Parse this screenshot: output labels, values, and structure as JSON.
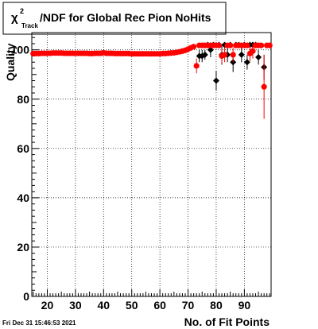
{
  "title": {
    "symbol": "χ",
    "superscript": "2",
    "subscript": "Track",
    "rest": "/NDF for Global Rec Pion NoHits"
  },
  "timestamp": "Fri Dec 31 15:46:53 2021",
  "chart_data": {
    "type": "scatter",
    "xlabel": "No. of Fit Points",
    "ylabel": "Quality",
    "xlim": [
      14.5,
      99.5
    ],
    "ylim": [
      0,
      107
    ],
    "x_ticks": [
      20,
      30,
      40,
      50,
      60,
      70,
      80,
      90
    ],
    "y_ticks": [
      0,
      20,
      40,
      60,
      80,
      100
    ],
    "grid": true,
    "series": [
      {
        "color": "#000000",
        "marker": "diamond",
        "points": [
          {
            "x": 74,
            "y": 97.5,
            "err": 2.5
          },
          {
            "x": 75,
            "y": 97.5,
            "err": 2.5
          },
          {
            "x": 76,
            "y": 98,
            "err": 2
          },
          {
            "x": 77,
            "y": 102,
            "err": 0
          },
          {
            "x": 78,
            "y": 100,
            "err": 3
          },
          {
            "x": 79,
            "y": 102,
            "err": 0
          },
          {
            "x": 80,
            "y": 87.5,
            "err": 4
          },
          {
            "x": 81,
            "y": 102,
            "err": 0
          },
          {
            "x": 82,
            "y": 98,
            "err": 4
          },
          {
            "x": 83,
            "y": 102,
            "err": 0
          },
          {
            "x": 84,
            "y": 98,
            "err": 3
          },
          {
            "x": 85,
            "y": 102,
            "err": 0
          },
          {
            "x": 86,
            "y": 95,
            "err": 4
          },
          {
            "x": 87,
            "y": 102,
            "err": 0
          },
          {
            "x": 88,
            "y": 102,
            "err": 0
          },
          {
            "x": 89,
            "y": 98,
            "err": 3
          },
          {
            "x": 90,
            "y": 102,
            "err": 0
          },
          {
            "x": 91,
            "y": 95,
            "err": 3
          },
          {
            "x": 92,
            "y": 102,
            "err": 0
          },
          {
            "x": 93,
            "y": 102,
            "err": 0
          },
          {
            "x": 94,
            "y": 102,
            "err": 0
          },
          {
            "x": 95,
            "y": 97,
            "err": 3
          },
          {
            "x": 97,
            "y": 93,
            "err": 5
          }
        ]
      },
      {
        "color": "#ff0000",
        "marker": "circle",
        "points": [
          {
            "x": 15,
            "y": 98.5
          },
          {
            "x": 16,
            "y": 98.5
          },
          {
            "x": 17,
            "y": 98.5
          },
          {
            "x": 18,
            "y": 98.6
          },
          {
            "x": 19,
            "y": 98.6
          },
          {
            "x": 20,
            "y": 98.6
          },
          {
            "x": 21,
            "y": 98.6
          },
          {
            "x": 22,
            "y": 98.7
          },
          {
            "x": 23,
            "y": 98.7
          },
          {
            "x": 24,
            "y": 98.7
          },
          {
            "x": 25,
            "y": 98.7
          },
          {
            "x": 26,
            "y": 98.6
          },
          {
            "x": 27,
            "y": 98.6
          },
          {
            "x": 28,
            "y": 98.6
          },
          {
            "x": 29,
            "y": 98.6
          },
          {
            "x": 30,
            "y": 98.6
          },
          {
            "x": 31,
            "y": 98.6
          },
          {
            "x": 32,
            "y": 98.6
          },
          {
            "x": 33,
            "y": 98.6
          },
          {
            "x": 34,
            "y": 98.6
          },
          {
            "x": 35,
            "y": 98.5
          },
          {
            "x": 36,
            "y": 98.5
          },
          {
            "x": 37,
            "y": 98.6
          },
          {
            "x": 38,
            "y": 98.6
          },
          {
            "x": 39,
            "y": 98.6
          },
          {
            "x": 40,
            "y": 98.8
          },
          {
            "x": 41,
            "y": 98.6
          },
          {
            "x": 42,
            "y": 98.6
          },
          {
            "x": 43,
            "y": 98.6
          },
          {
            "x": 44,
            "y": 98.5
          },
          {
            "x": 45,
            "y": 98.5
          },
          {
            "x": 46,
            "y": 98.5
          },
          {
            "x": 47,
            "y": 98.5
          },
          {
            "x": 48,
            "y": 98.5
          },
          {
            "x": 49,
            "y": 98.5
          },
          {
            "x": 50,
            "y": 98.4
          },
          {
            "x": 51,
            "y": 98.4
          },
          {
            "x": 52,
            "y": 98.4
          },
          {
            "x": 53,
            "y": 98.4
          },
          {
            "x": 54,
            "y": 98.4
          },
          {
            "x": 55,
            "y": 98.4
          },
          {
            "x": 56,
            "y": 98.4
          },
          {
            "x": 57,
            "y": 98.4
          },
          {
            "x": 58,
            "y": 98.4
          },
          {
            "x": 59,
            "y": 98.4
          },
          {
            "x": 60,
            "y": 98.4
          },
          {
            "x": 61,
            "y": 98.5
          },
          {
            "x": 62,
            "y": 98.5
          },
          {
            "x": 63,
            "y": 98.6
          },
          {
            "x": 64,
            "y": 98.7
          },
          {
            "x": 65,
            "y": 98.8
          },
          {
            "x": 66,
            "y": 99
          },
          {
            "x": 67,
            "y": 99.2
          },
          {
            "x": 68,
            "y": 99.5
          },
          {
            "x": 69,
            "y": 99.8
          },
          {
            "x": 70,
            "y": 100.3
          },
          {
            "x": 71,
            "y": 100.8
          },
          {
            "x": 72,
            "y": 101.3
          },
          {
            "x": 73,
            "y": 93.5,
            "err": 3
          },
          {
            "x": 74,
            "y": 101.8
          },
          {
            "x": 75,
            "y": 101.8
          },
          {
            "x": 76,
            "y": 101.8
          },
          {
            "x": 77,
            "y": 101.8
          },
          {
            "x": 78,
            "y": 101.8
          },
          {
            "x": 79,
            "y": 101.8
          },
          {
            "x": 80,
            "y": 101.8
          },
          {
            "x": 81,
            "y": 101.8
          },
          {
            "x": 82,
            "y": 97.5,
            "err": 3
          },
          {
            "x": 83,
            "y": 98,
            "err": 3
          },
          {
            "x": 84,
            "y": 101.8
          },
          {
            "x": 85,
            "y": 101.8
          },
          {
            "x": 86,
            "y": 98,
            "err": 3
          },
          {
            "x": 87,
            "y": 101.8
          },
          {
            "x": 88,
            "y": 101.8
          },
          {
            "x": 89,
            "y": 101.8
          },
          {
            "x": 90,
            "y": 101.8
          },
          {
            "x": 91,
            "y": 101.8
          },
          {
            "x": 92,
            "y": 98.5,
            "err": 3
          },
          {
            "x": 93,
            "y": 99.5,
            "err": 3
          },
          {
            "x": 94,
            "y": 101.8
          },
          {
            "x": 95,
            "y": 101.8
          },
          {
            "x": 96,
            "y": 101.8
          },
          {
            "x": 97,
            "y": 85,
            "err": 13
          },
          {
            "x": 98,
            "y": 101.8
          },
          {
            "x": 99,
            "y": 101.8
          }
        ]
      }
    ]
  }
}
